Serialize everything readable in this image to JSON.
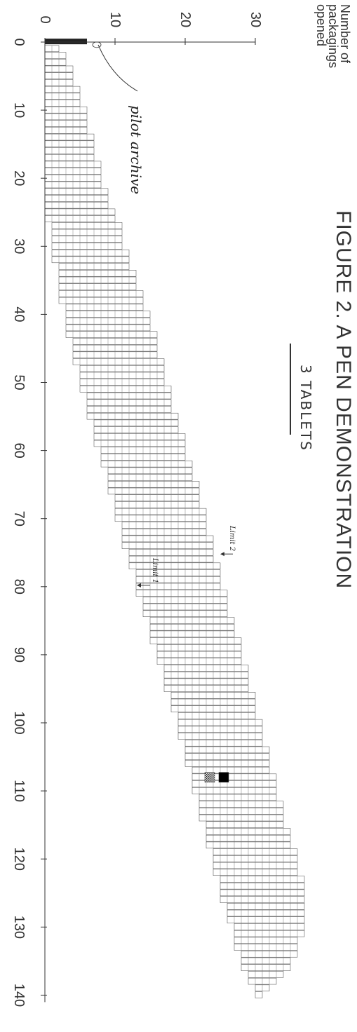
{
  "title": "FIGURE 2. A PEN DEMONSTRATION",
  "legend": {
    "label": "3 TABLETS"
  },
  "chart_data": {
    "type": "bar",
    "orientation": "rotated-90",
    "ylabel": "Number of\npackagings\nopened",
    "x_ticks": [
      "0",
      "10",
      "20",
      "30",
      "40",
      "50",
      "60",
      "70",
      "80",
      "90",
      "100",
      "110",
      "120",
      "130",
      "140"
    ],
    "y_ticks": [
      "0",
      "10",
      "20",
      "30"
    ],
    "xlim": [
      0,
      140
    ],
    "ylim": [
      0,
      30
    ],
    "bars": [
      [
        1,
        0,
        2
      ],
      [
        2,
        0,
        3
      ],
      [
        3,
        0,
        3
      ],
      [
        4,
        0,
        4
      ],
      [
        5,
        0,
        4
      ],
      [
        6,
        0,
        4
      ],
      [
        7,
        0,
        5
      ],
      [
        8,
        0,
        5
      ],
      [
        9,
        0,
        5
      ],
      [
        10,
        0,
        6
      ],
      [
        11,
        0,
        6
      ],
      [
        12,
        0,
        6
      ],
      [
        13,
        0,
        6
      ],
      [
        14,
        0,
        7
      ],
      [
        15,
        0,
        7
      ],
      [
        16,
        0,
        7
      ],
      [
        17,
        0,
        7
      ],
      [
        18,
        0,
        8
      ],
      [
        19,
        0,
        8
      ],
      [
        20,
        0,
        8
      ],
      [
        21,
        0,
        8
      ],
      [
        22,
        0,
        9
      ],
      [
        23,
        0,
        9
      ],
      [
        24,
        0,
        9
      ],
      [
        25,
        0,
        10
      ],
      [
        26,
        0,
        10
      ],
      [
        27,
        1,
        11
      ],
      [
        28,
        1,
        11
      ],
      [
        29,
        1,
        11
      ],
      [
        30,
        1,
        11
      ],
      [
        31,
        1,
        12
      ],
      [
        32,
        1,
        12
      ],
      [
        33,
        2,
        12
      ],
      [
        34,
        2,
        13
      ],
      [
        35,
        2,
        13
      ],
      [
        36,
        2,
        13
      ],
      [
        37,
        2,
        14
      ],
      [
        38,
        2,
        14
      ],
      [
        39,
        3,
        14
      ],
      [
        40,
        3,
        15
      ],
      [
        41,
        3,
        15
      ],
      [
        42,
        3,
        15
      ],
      [
        43,
        3,
        16
      ],
      [
        44,
        4,
        16
      ],
      [
        45,
        4,
        16
      ],
      [
        46,
        4,
        16
      ],
      [
        47,
        4,
        17
      ],
      [
        48,
        5,
        17
      ],
      [
        49,
        5,
        17
      ],
      [
        50,
        5,
        17
      ],
      [
        51,
        5,
        18
      ],
      [
        52,
        6,
        18
      ],
      [
        53,
        6,
        18
      ],
      [
        54,
        6,
        18
      ],
      [
        55,
        6,
        19
      ],
      [
        56,
        7,
        19
      ],
      [
        57,
        7,
        19
      ],
      [
        58,
        7,
        20
      ],
      [
        59,
        7,
        20
      ],
      [
        60,
        8,
        20
      ],
      [
        61,
        8,
        20
      ],
      [
        62,
        8,
        21
      ],
      [
        63,
        9,
        21
      ],
      [
        64,
        9,
        21
      ],
      [
        65,
        9,
        22
      ],
      [
        66,
        9,
        22
      ],
      [
        67,
        10,
        22
      ],
      [
        68,
        10,
        22
      ],
      [
        69,
        10,
        23
      ],
      [
        70,
        10,
        23
      ],
      [
        71,
        11,
        23
      ],
      [
        72,
        11,
        23
      ],
      [
        73,
        11,
        24
      ],
      [
        74,
        11,
        24
      ],
      [
        75,
        12,
        24
      ],
      [
        76,
        12,
        24
      ],
      [
        77,
        12,
        25
      ],
      [
        78,
        13,
        25
      ],
      [
        79,
        13,
        25
      ],
      [
        80,
        13,
        25
      ],
      [
        81,
        13,
        26
      ],
      [
        82,
        14,
        26
      ],
      [
        83,
        14,
        26
      ],
      [
        84,
        14,
        26
      ],
      [
        85,
        15,
        27
      ],
      [
        86,
        15,
        27
      ],
      [
        87,
        15,
        27
      ],
      [
        88,
        15,
        28
      ],
      [
        89,
        16,
        28
      ],
      [
        90,
        16,
        28
      ],
      [
        91,
        16,
        28
      ],
      [
        92,
        17,
        29
      ],
      [
        93,
        17,
        29
      ],
      [
        94,
        17,
        29
      ],
      [
        95,
        17,
        29
      ],
      [
        96,
        18,
        30
      ],
      [
        97,
        18,
        30
      ],
      [
        98,
        18,
        30
      ],
      [
        99,
        19,
        30
      ],
      [
        100,
        19,
        31
      ],
      [
        101,
        19,
        31
      ],
      [
        102,
        19,
        31
      ],
      [
        103,
        20,
        31
      ],
      [
        104,
        20,
        32
      ],
      [
        105,
        20,
        32
      ],
      [
        106,
        20,
        32
      ],
      [
        107,
        21,
        32
      ],
      [
        108,
        21,
        33
      ],
      [
        109,
        21,
        33
      ],
      [
        110,
        21,
        33
      ],
      [
        111,
        22,
        33
      ],
      [
        112,
        22,
        34
      ],
      [
        113,
        22,
        34
      ],
      [
        114,
        22,
        34
      ],
      [
        115,
        23,
        34
      ],
      [
        116,
        23,
        35
      ],
      [
        117,
        23,
        35
      ],
      [
        118,
        23,
        35
      ],
      [
        119,
        24,
        36
      ],
      [
        120,
        24,
        36
      ],
      [
        121,
        24,
        36
      ],
      [
        122,
        24,
        36
      ],
      [
        123,
        25,
        37
      ],
      [
        124,
        25,
        37
      ],
      [
        125,
        25,
        37
      ],
      [
        126,
        25,
        37
      ],
      [
        127,
        26,
        37
      ],
      [
        128,
        26,
        37
      ],
      [
        129,
        26,
        37
      ],
      [
        130,
        27,
        37
      ],
      [
        131,
        27,
        37
      ],
      [
        132,
        27,
        36
      ],
      [
        133,
        27,
        36
      ],
      [
        134,
        28,
        36
      ],
      [
        135,
        28,
        35
      ],
      [
        136,
        28,
        35
      ],
      [
        137,
        29,
        34
      ],
      [
        138,
        29,
        33
      ],
      [
        139,
        30,
        32
      ],
      [
        140,
        30,
        31
      ]
    ],
    "markers": [
      {
        "kind": "solid",
        "x": 108,
        "y": 25
      },
      {
        "kind": "checkered",
        "x": 108,
        "y": 23
      }
    ],
    "annotations": [
      {
        "id": "pilot",
        "text": "pilot archive",
        "x": 8,
        "y": 13
      },
      {
        "id": "limit2",
        "text": "Limit 2",
        "x": 75,
        "y": 25
      },
      {
        "id": "limit1",
        "text": "Limit 1",
        "x": 80,
        "y": 13
      }
    ],
    "grid": false,
    "legend_position": "top-right"
  }
}
